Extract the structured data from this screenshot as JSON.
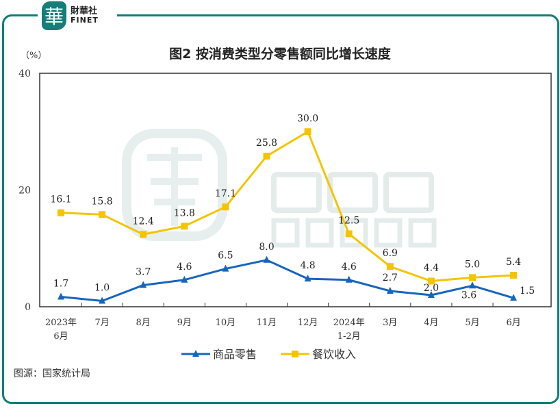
{
  "logo": {
    "seal_char": "華",
    "cn": "財華社",
    "en": "FINET"
  },
  "watermark": {
    "cn": "財華社",
    "en": "FINET"
  },
  "unit": "（%）",
  "source": "图源：国家统计局",
  "colors": {
    "frame": "#0f7d78",
    "retail": "#1565c0",
    "catering": "#f5c400"
  },
  "chart_data": {
    "type": "line",
    "title": "图2  按消费类型分零售额同比增长速度",
    "ylabel": "（%）",
    "ylim": [
      0,
      40
    ],
    "yticks": [
      "0",
      "20",
      "40"
    ],
    "categories": [
      [
        "2023年",
        "6月"
      ],
      [
        "7月"
      ],
      [
        "8月"
      ],
      [
        "9月"
      ],
      [
        "10月"
      ],
      [
        "11月"
      ],
      [
        "12月"
      ],
      [
        "2024年",
        "1-2月"
      ],
      [
        "3月"
      ],
      [
        "4月"
      ],
      [
        "5月"
      ],
      [
        "6月"
      ]
    ],
    "grid": false,
    "legend_position": "bottom",
    "series": [
      {
        "name": "商品零售",
        "marker": "triangle",
        "values": [
          1.7,
          1.0,
          3.7,
          4.6,
          6.5,
          8.0,
          4.8,
          4.6,
          2.7,
          2.0,
          3.6,
          1.5
        ],
        "labels": [
          "1.7",
          "1.0",
          "3.7",
          "4.6",
          "6.5",
          "8.0",
          "4.8",
          "4.6",
          "2.7",
          "2.0",
          "3.6",
          "1.5"
        ]
      },
      {
        "name": "餐饮收入",
        "marker": "square",
        "values": [
          16.1,
          15.8,
          12.4,
          13.8,
          17.1,
          25.8,
          30.0,
          12.5,
          6.9,
          4.4,
          5.0,
          5.4
        ],
        "labels": [
          "16.1",
          "15.8",
          "12.4",
          "13.8",
          "17.1",
          "25.8",
          "30.0",
          "12.5",
          "6.9",
          "4.4",
          "5.0",
          "5.4"
        ]
      }
    ]
  }
}
